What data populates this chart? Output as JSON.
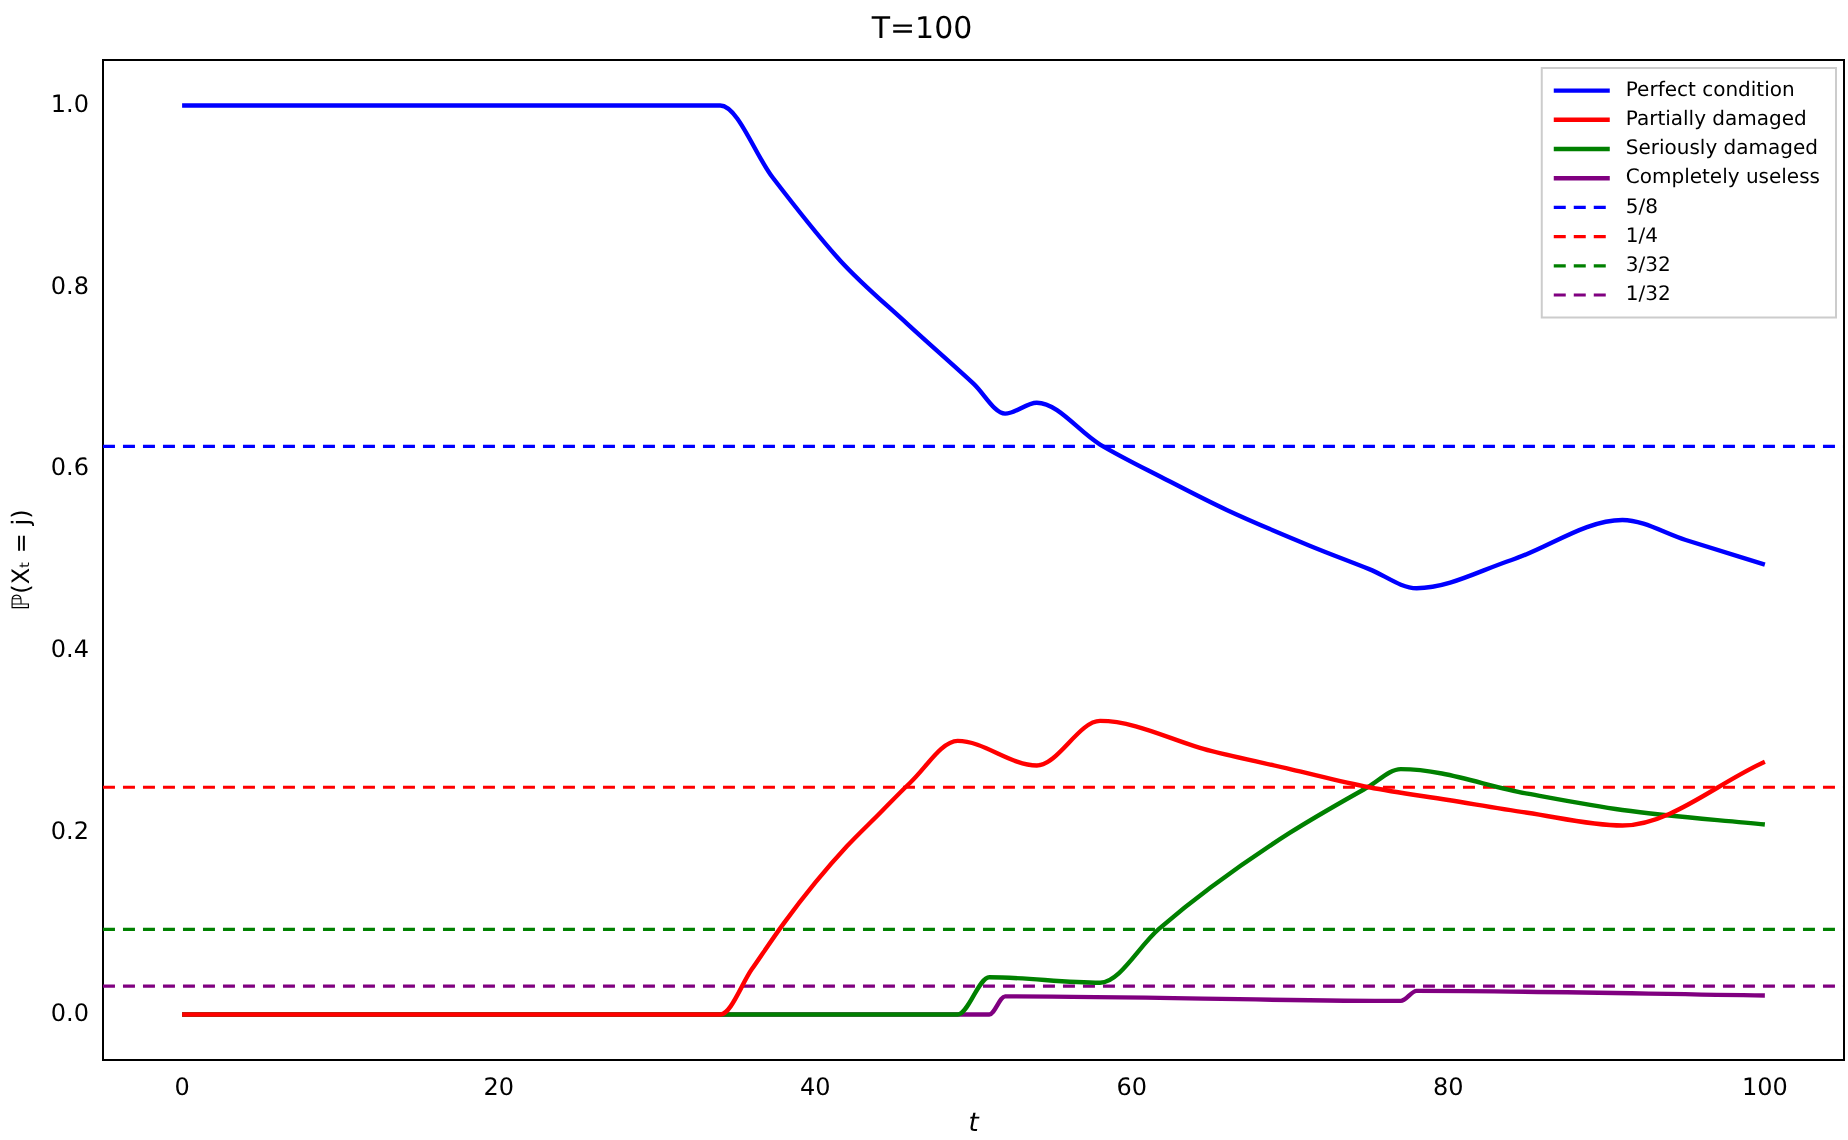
{
  "chart_data": {
    "type": "line",
    "title": "T=100",
    "xlabel": "t",
    "ylabel": "ℙ(Xₜ = j)",
    "xlim": [
      -5,
      105
    ],
    "xticks": [
      0,
      20,
      40,
      60,
      80,
      100
    ],
    "ylim": [
      -0.05,
      1.05
    ],
    "yticks": [
      {
        "value": 0,
        "label": "0.0"
      },
      0.2,
      0.4,
      0.6,
      0.8,
      {
        "value": 1,
        "label": "1.0"
      }
    ],
    "grid": false,
    "legend": "top right",
    "marker": "none",
    "line_style": "solid",
    "series": [
      {
        "name": "Perfect condition",
        "color": "#0000ff",
        "x": [
          0,
          34,
          37.3,
          41.6,
          45.8,
          50,
          52,
          54,
          58,
          62,
          66,
          71.2,
          75,
          78,
          84,
          91,
          95,
          100
        ],
        "values": [
          1.0,
          1.0,
          0.921,
          0.829,
          0.76,
          0.694,
          0.661,
          0.673,
          0.627,
          0.59,
          0.555,
          0.516,
          0.49,
          0.469,
          0.5,
          0.544,
          0.522,
          0.495
        ]
      },
      {
        "name": "Partially damaged",
        "color": "#ff0000",
        "x": [
          0,
          34,
          36,
          38,
          40,
          42,
          44,
          46,
          49,
          54,
          58,
          65,
          70,
          75,
          80,
          85,
          91,
          100
        ],
        "values": [
          0,
          0,
          0.05,
          0.1,
          0.145,
          0.185,
          0.22,
          0.255,
          0.301,
          0.274,
          0.323,
          0.29,
          0.27,
          0.25,
          0.236,
          0.222,
          0.208,
          0.278
        ]
      },
      {
        "name": "Seriously damaged",
        "color": "#008000",
        "x": [
          0,
          49,
          51,
          58,
          61.7,
          65,
          70,
          74.9,
          77,
          85,
          91,
          100
        ],
        "values": [
          0,
          0,
          0.041,
          0.035,
          0.094,
          0.14,
          0.2,
          0.25,
          0.27,
          0.243,
          0.225,
          0.209
        ]
      },
      {
        "name": "Completely useless",
        "color": "#800080",
        "x": [
          0,
          51,
          52,
          77,
          78,
          100
        ],
        "values": [
          0,
          0,
          0.02,
          0.015,
          0.026,
          0.021
        ]
      },
      {
        "name": "5/8",
        "color": "#0000ff",
        "line_style": "dashed",
        "x": [
          -5,
          105
        ],
        "values": [
          0.625,
          0.625
        ]
      },
      {
        "name": "1/4",
        "color": "#ff0000",
        "line_style": "dashed",
        "x": [
          -5,
          105
        ],
        "values": [
          0.25,
          0.25
        ]
      },
      {
        "name": "3/32",
        "color": "#008000",
        "line_style": "dashed",
        "x": [
          -5,
          105
        ],
        "values": [
          0.09375,
          0.09375
        ]
      },
      {
        "name": "1/32",
        "color": "#800080",
        "line_style": "dashed",
        "x": [
          -5,
          105
        ],
        "values": [
          0.03125,
          0.03125
        ]
      }
    ]
  }
}
